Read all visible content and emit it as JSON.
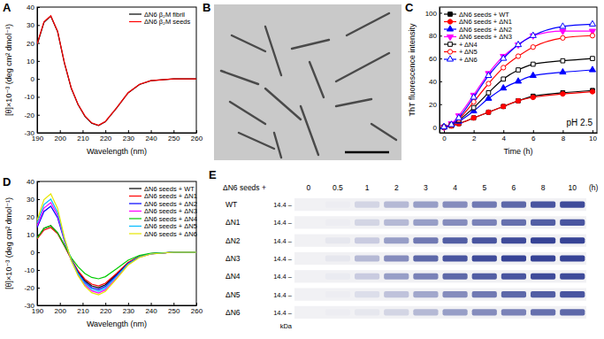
{
  "chart_data": [
    {
      "type": "line",
      "title": "A",
      "x_label": "Wavelength (nm)",
      "y_label": "[θ]×10⁻³ (deg cm² dmol⁻¹)",
      "x": [
        190,
        193,
        196,
        199,
        202,
        205,
        208,
        211,
        214,
        217,
        220,
        225,
        230,
        235,
        240,
        250,
        260
      ],
      "series": [
        {
          "name": "ΔN6 β₂M fibril",
          "color": "#000000",
          "line_style": "solid",
          "values": [
            19,
            31.5,
            35,
            26.3,
            8.8,
            -5.2,
            -14.3,
            -20.8,
            -24.7,
            -26,
            -23.9,
            -16.1,
            -7.8,
            -3.1,
            -1,
            0,
            0
          ]
        },
        {
          "name": "ΔN6 β₂M seeds",
          "color": "#ff0000",
          "line_style": "solid",
          "values": [
            19.5,
            31.8,
            35.2,
            26.5,
            9,
            -5,
            -14.2,
            -20.6,
            -24.5,
            -25.8,
            -23.7,
            -16,
            -7.7,
            -3,
            -1,
            0,
            0
          ]
        }
      ],
      "xlim": [
        190,
        260
      ],
      "xticks": [
        190,
        200,
        210,
        220,
        230,
        240,
        250,
        260
      ],
      "ylim": [
        -30,
        40
      ],
      "yticks": [
        -30,
        -20,
        -10,
        0,
        10,
        20,
        30,
        40
      ],
      "legend": "upper right"
    },
    {
      "type": "image",
      "title": "B"
    },
    {
      "type": "line",
      "title": "C",
      "x_label": "Time (h)",
      "y_label": "ThT fluorescence intensity",
      "annotation": "pH 2.5",
      "x": [
        0,
        0.5,
        1,
        2,
        3,
        4,
        5,
        6,
        8,
        10
      ],
      "series": [
        {
          "name": "ΔN6 seeds + WT",
          "color": "#000000",
          "marker": "square",
          "values": [
            0,
            1,
            3,
            8,
            13,
            18,
            23,
            27,
            30,
            32
          ]
        },
        {
          "name": "ΔN6 seeds + ΔN1",
          "color": "#ff0000",
          "marker": "circle",
          "values": [
            0,
            1,
            3,
            8,
            13,
            18,
            23,
            26,
            29,
            31
          ]
        },
        {
          "name": "ΔN6 seeds + ΔN2",
          "color": "#0000ff",
          "marker": "triangle",
          "values": [
            0,
            2,
            5,
            14,
            25,
            34,
            40,
            45,
            48,
            50
          ]
        },
        {
          "name": "ΔN6 seeds + ΔN3",
          "color": "#ff00ff",
          "marker": "triangle-down",
          "values": [
            0,
            3,
            10,
            28,
            47,
            62,
            72,
            80,
            84,
            84
          ]
        },
        {
          "name": "+ ΔN4",
          "color": "#000000",
          "marker": "square-open",
          "values": [
            0,
            2,
            6,
            17,
            30,
            42,
            50,
            55,
            58,
            60
          ]
        },
        {
          "name": "+ ΔN5",
          "color": "#ff0000",
          "marker": "circle-open",
          "values": [
            0,
            2,
            7,
            22,
            38,
            52,
            62,
            70,
            78,
            80
          ]
        },
        {
          "name": "+ ΔN6",
          "color": "#0000ff",
          "marker": "triangle-open",
          "values": [
            0,
            2,
            8,
            26,
            45,
            60,
            72,
            80,
            88,
            90
          ]
        }
      ],
      "xlim": [
        -0.3,
        10.3
      ],
      "xticks": [
        0,
        2,
        4,
        6,
        8,
        10
      ],
      "ylim": [
        -5,
        105
      ],
      "yticks": [
        0,
        20,
        40,
        60,
        80,
        100
      ],
      "legend": "upper left"
    },
    {
      "type": "line",
      "title": "D",
      "x_label": "Wavelength (nm)",
      "y_label": "[θ]×10⁻³ (deg cm² dmol⁻¹)",
      "x": [
        190,
        193,
        196,
        199,
        202,
        205,
        208,
        211,
        214,
        217,
        220,
        225,
        230,
        235,
        240,
        250,
        260
      ],
      "series": [
        {
          "name": "ΔN6 seeds + WT",
          "color": "#000000",
          "line_style": "solid",
          "values": [
            8,
            13.5,
            15,
            11,
            4,
            -4,
            -11,
            -16,
            -19,
            -20,
            -18.4,
            -12.4,
            -6,
            -2.4,
            -0.8,
            0,
            0
          ]
        },
        {
          "name": "ΔN6 seeds + ΔN1",
          "color": "#ff0000",
          "line_style": "solid",
          "values": [
            7.5,
            12.5,
            14,
            10.5,
            3.5,
            -3.8,
            -10.5,
            -15.2,
            -18,
            -19,
            -17.5,
            -11.8,
            -5.7,
            -2.3,
            -0.8,
            0,
            0
          ]
        },
        {
          "name": "ΔN6 seeds + ΔN2",
          "color": "#0000ff",
          "line_style": "solid",
          "values": [
            14,
            23,
            26,
            19.5,
            6.5,
            -4.2,
            -11.5,
            -16.8,
            -20,
            -21,
            -19.3,
            -13,
            -6.3,
            -2.5,
            -0.8,
            0,
            0
          ]
        },
        {
          "name": "ΔN6 seeds + ΔN3",
          "color": "#ff00ff",
          "line_style": "solid",
          "values": [
            15,
            25,
            28,
            21,
            7,
            -4.6,
            -12.6,
            -18.4,
            -21.8,
            -23,
            -21.2,
            -14.3,
            -6.9,
            -2.8,
            -0.9,
            0,
            0
          ]
        },
        {
          "name": "ΔN6 seeds + ΔN4",
          "color": "#00cc00",
          "line_style": "solid",
          "values": [
            8,
            13.5,
            15,
            11,
            3.8,
            -3,
            -8.2,
            -12,
            -14.2,
            -15,
            -13.8,
            -9.3,
            -4.5,
            -1.8,
            -0.6,
            0,
            0
          ]
        },
        {
          "name": "ΔN6 seeds + ΔN5",
          "color": "#00bbff",
          "line_style": "solid",
          "values": [
            16.5,
            27,
            30,
            22.5,
            7.5,
            -4.4,
            -12.1,
            -17.6,
            -20.9,
            -22,
            -20.2,
            -13.6,
            -6.6,
            -2.6,
            -0.9,
            0,
            0
          ]
        },
        {
          "name": "ΔN6 seeds + ΔN6",
          "color": "#e6e600",
          "line_style": "solid",
          "values": [
            18,
            29.7,
            33,
            24.8,
            8.3,
            -4.8,
            -13.2,
            -19.2,
            -22.8,
            -24,
            -22.1,
            -14.9,
            -7.2,
            -2.9,
            -1,
            0,
            0
          ]
        }
      ],
      "xlim": [
        190,
        260
      ],
      "xticks": [
        190,
        200,
        210,
        220,
        230,
        240,
        250,
        260
      ],
      "ylim": [
        -30,
        40
      ],
      "yticks": [
        -30,
        -20,
        -10,
        0,
        10,
        20,
        30,
        40
      ],
      "legend": "upper right"
    },
    {
      "type": "gel",
      "title": "E",
      "row_header": "ΔN6 seeds +",
      "categories": [
        "0",
        "0.5",
        "1",
        "2",
        "3",
        "4",
        "5",
        "6",
        "8",
        "10"
      ],
      "x_unit": "(h)",
      "rows": [
        "WT",
        "ΔN1",
        "ΔN2",
        "ΔN3",
        "ΔN4",
        "ΔN5",
        "ΔN6"
      ],
      "marker_label": "14.4 –",
      "marker_unit": "kDa",
      "color": "#2b3990",
      "band_intensity": [
        [
          0,
          0.02,
          0.15,
          0.3,
          0.45,
          0.55,
          0.65,
          0.75,
          0.85,
          0.9
        ],
        [
          0,
          0.02,
          0.15,
          0.3,
          0.45,
          0.55,
          0.6,
          0.7,
          0.8,
          0.85
        ],
        [
          0,
          0.05,
          0.2,
          0.45,
          0.65,
          0.8,
          0.85,
          0.9,
          0.95,
          0.95
        ],
        [
          0,
          0.05,
          0.3,
          0.55,
          0.75,
          0.85,
          0.9,
          0.95,
          0.95,
          0.95
        ],
        [
          0,
          0.03,
          0.2,
          0.45,
          0.6,
          0.75,
          0.8,
          0.85,
          0.9,
          0.9
        ],
        [
          0,
          0.02,
          0.1,
          0.25,
          0.4,
          0.55,
          0.65,
          0.75,
          0.8,
          0.85
        ],
        [
          0,
          0.02,
          0.05,
          0.15,
          0.3,
          0.45,
          0.55,
          0.6,
          0.7,
          0.75
        ]
      ]
    }
  ]
}
